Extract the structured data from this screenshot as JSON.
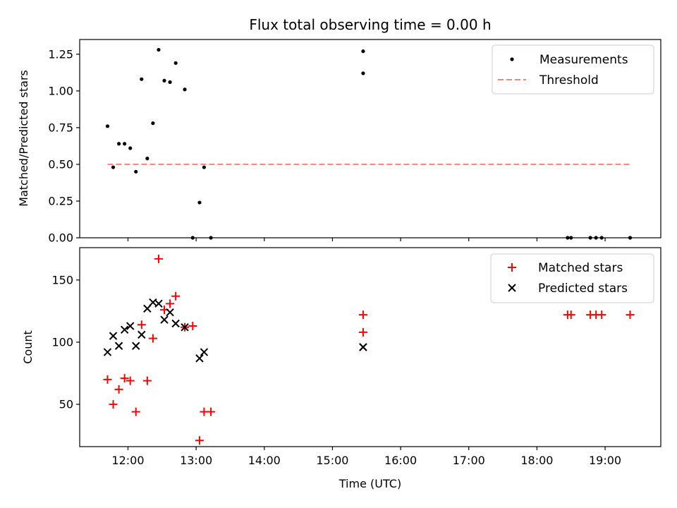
{
  "chart_data": [
    {
      "type": "scatter",
      "title": "Flux total observing time = 0.00 h",
      "ylabel": "Matched/Predicted stars",
      "ylim": [
        0,
        1.35
      ],
      "yticks": [
        "0.00",
        "0.25",
        "0.50",
        "0.75",
        "1.00",
        "1.25"
      ],
      "legend_position": "upper-right",
      "colors": {
        "measurements": "#000000",
        "threshold": "#ff7f7f"
      },
      "series": [
        {
          "name": "Measurements",
          "marker": "dot",
          "points": [
            [
              "11:42",
              0.76
            ],
            [
              "11:47",
              0.48
            ],
            [
              "11:52",
              0.64
            ],
            [
              "11:57",
              0.64
            ],
            [
              "12:02",
              0.61
            ],
            [
              "12:07",
              0.45
            ],
            [
              "12:12",
              1.08
            ],
            [
              "12:17",
              0.54
            ],
            [
              "12:22",
              0.78
            ],
            [
              "12:27",
              1.28
            ],
            [
              "12:32",
              1.07
            ],
            [
              "12:37",
              1.06
            ],
            [
              "12:42",
              1.19
            ],
            [
              "12:50",
              1.01
            ],
            [
              "12:57",
              0.0
            ],
            [
              "13:03",
              0.24
            ],
            [
              "13:07",
              0.48
            ],
            [
              "13:13",
              0.0
            ],
            [
              "15:27",
              1.27
            ],
            [
              "15:27",
              1.12
            ],
            [
              "18:27",
              0.0
            ],
            [
              "18:30",
              0.0
            ],
            [
              "18:47",
              0.0
            ],
            [
              "18:52",
              0.0
            ],
            [
              "18:57",
              0.0
            ],
            [
              "19:22",
              0.0
            ]
          ]
        },
        {
          "name": "Threshold",
          "style": "dashed",
          "points": [
            [
              "11:42",
              0.5
            ],
            [
              "19:22",
              0.5
            ]
          ]
        }
      ]
    },
    {
      "type": "scatter",
      "xlabel": "Time (UTC)",
      "ylabel": "Count",
      "ylim": [
        16,
        176
      ],
      "yticks": [
        "50",
        "100",
        "150"
      ],
      "xticks": [
        "12:00",
        "13:00",
        "14:00",
        "15:00",
        "16:00",
        "17:00",
        "18:00",
        "19:00"
      ],
      "legend_position": "upper-right",
      "colors": {
        "matched": "#ff0000",
        "predicted": "#000000"
      },
      "series": [
        {
          "name": "Matched stars",
          "marker": "plus",
          "points": [
            [
              "11:42",
              70
            ],
            [
              "11:47",
              50
            ],
            [
              "11:52",
              62
            ],
            [
              "11:57",
              71
            ],
            [
              "12:02",
              69
            ],
            [
              "12:07",
              44
            ],
            [
              "12:12",
              114
            ],
            [
              "12:17",
              69
            ],
            [
              "12:22",
              103
            ],
            [
              "12:27",
              167
            ],
            [
              "12:32",
              126
            ],
            [
              "12:37",
              131
            ],
            [
              "12:42",
              137
            ],
            [
              "12:50",
              112
            ],
            [
              "12:57",
              113
            ],
            [
              "13:03",
              21
            ],
            [
              "13:07",
              44
            ],
            [
              "13:13",
              44
            ],
            [
              "15:27",
              122
            ],
            [
              "15:27",
              108
            ],
            [
              "18:27",
              122
            ],
            [
              "18:30",
              122
            ],
            [
              "18:47",
              122
            ],
            [
              "18:52",
              122
            ],
            [
              "18:57",
              122
            ],
            [
              "19:22",
              122
            ]
          ]
        },
        {
          "name": "Predicted stars",
          "marker": "x",
          "points": [
            [
              "11:42",
              92
            ],
            [
              "11:47",
              105
            ],
            [
              "11:52",
              97
            ],
            [
              "11:57",
              110
            ],
            [
              "12:02",
              113
            ],
            [
              "12:07",
              97
            ],
            [
              "12:12",
              106
            ],
            [
              "12:17",
              127
            ],
            [
              "12:22",
              132
            ],
            [
              "12:27",
              131
            ],
            [
              "12:32",
              118
            ],
            [
              "12:37",
              124
            ],
            [
              "12:42",
              115
            ],
            [
              "12:50",
              112
            ],
            [
              "13:03",
              87
            ],
            [
              "13:07",
              92
            ],
            [
              "15:27",
              96
            ],
            [
              "15:27",
              96
            ]
          ]
        }
      ]
    }
  ]
}
